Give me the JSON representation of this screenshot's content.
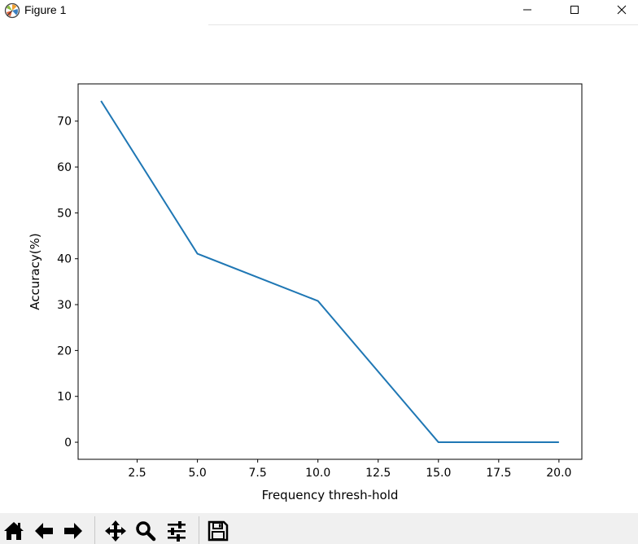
{
  "window": {
    "title": "Figure 1",
    "icons": [
      "matplotlib-logo-icon",
      "minimize-icon",
      "maximize-icon",
      "close-icon"
    ]
  },
  "toolbar": {
    "buttons": [
      {
        "name": "home",
        "icon": "home-icon"
      },
      {
        "name": "back",
        "icon": "arrow-left-icon"
      },
      {
        "name": "forward",
        "icon": "arrow-right-icon"
      },
      {
        "name": "pan",
        "icon": "move-arrows-icon"
      },
      {
        "name": "zoom",
        "icon": "magnifier-icon"
      },
      {
        "name": "subplots",
        "icon": "sliders-icon"
      },
      {
        "name": "save",
        "icon": "floppy-disk-icon"
      }
    ]
  },
  "chart_data": {
    "type": "line",
    "title": "",
    "xlabel": "Frequency thresh-hold",
    "ylabel": "Accuracy(%)",
    "x": [
      1,
      5,
      10,
      15,
      20
    ],
    "series": [
      {
        "values": [
          74.4,
          41.1,
          30.8,
          0,
          0
        ],
        "color": "#1f77b4"
      }
    ],
    "xlim": [
      0.05,
      20.95
    ],
    "ylim": [
      -3.72,
      78.12
    ],
    "xticks": [
      2.5,
      5.0,
      7.5,
      10.0,
      12.5,
      15.0,
      17.5,
      20.0
    ],
    "xtick_labels": [
      "2.5",
      "5.0",
      "7.5",
      "10.0",
      "12.5",
      "15.0",
      "17.5",
      "20.0"
    ],
    "yticks": [
      0,
      10,
      20,
      30,
      40,
      50,
      60,
      70
    ],
    "ytick_labels": [
      "0",
      "10",
      "20",
      "30",
      "40",
      "50",
      "60",
      "70"
    ],
    "grid": false,
    "legend": false
  }
}
